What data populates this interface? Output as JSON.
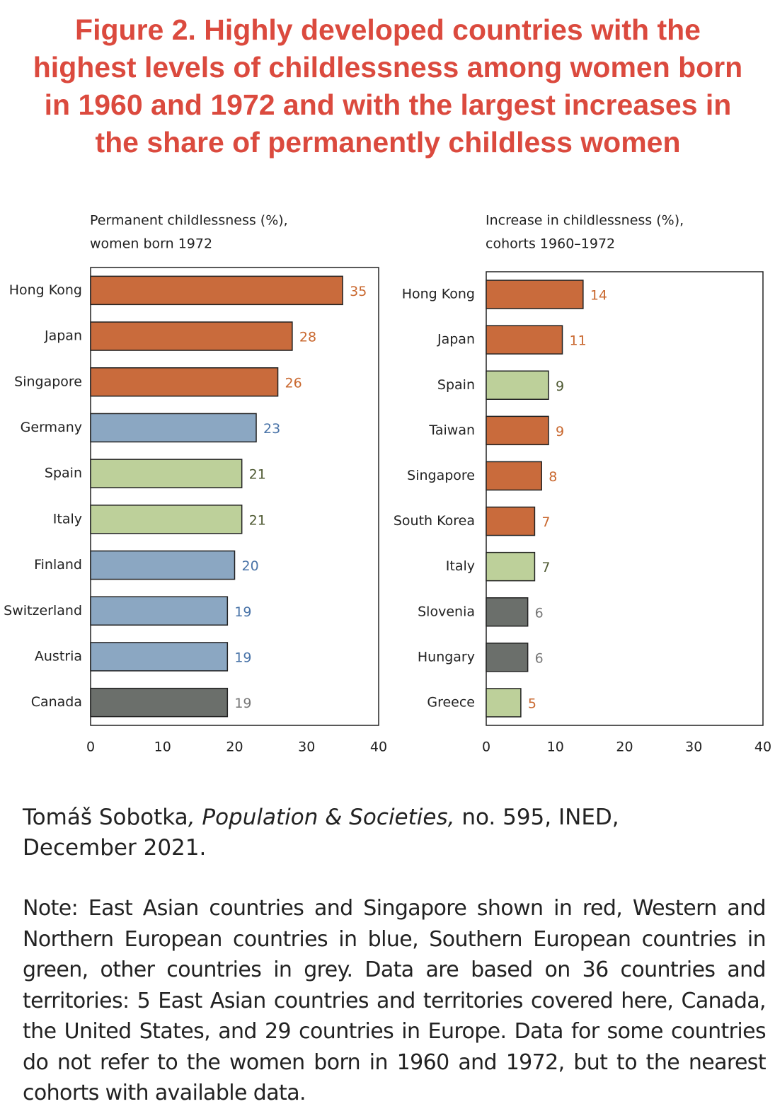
{
  "title": [
    "Figure 2. Highly developed countries with the",
    "highest levels of childlessness among women born",
    "in 1960 and 1972 and with the largest increases in",
    "the share of permanently childless women"
  ],
  "source": {
    "author": "Tomáš Sobotka",
    "journal": ", Population & Societies,",
    "rest": " no. 595, INED, December 2021."
  },
  "note": "Note: East Asian countries and Singapore shown in red, Western and Northern European countries in blue, Southern European countries in green, other countries in grey. Data are based on 36 countries and territories: 5 East Asian countries and territories covered here, Canada, the United States, and 29 countries in Europe. Data for some countries do not refer to the women born in 1960 and 1972, but to the nearest cohorts with available data.",
  "chart_data": [
    {
      "type": "barh",
      "axis_title": [
        "Permanent childlessness (%),",
        "women born 1972"
      ],
      "categories": [
        "Hong Kong",
        "Japan",
        "Singapore",
        "Germany",
        "Spain",
        "Italy",
        "Finland",
        "Switzerland",
        "Austria",
        "Canada"
      ],
      "values": [
        35,
        28,
        26,
        23,
        21,
        21,
        20,
        19,
        19,
        19
      ],
      "colors": [
        "#c96b3c",
        "#c96b3c",
        "#c96b3c",
        "#8ba7c2",
        "#bdd09a",
        "#bdd09a",
        "#8ba7c2",
        "#8ba7c2",
        "#8ba7c2",
        "#6b6f6b"
      ],
      "label_colors": [
        "#c9682f",
        "#c9682f",
        "#c9682f",
        "#4a74a8",
        "#4f5a33",
        "#4f5a33",
        "#4a74a8",
        "#4a74a8",
        "#4a74a8",
        "#777777"
      ],
      "xlim": [
        0,
        40
      ],
      "xticks": [
        0,
        10,
        20,
        30,
        40
      ]
    },
    {
      "type": "barh",
      "axis_title": [
        "Increase in childlessness (%),",
        "cohorts 1960–1972"
      ],
      "categories": [
        "Hong Kong",
        "Japan",
        "Spain",
        "Taiwan",
        "Singapore",
        "South Korea",
        "Italy",
        "Slovenia",
        "Hungary",
        "Greece"
      ],
      "values": [
        14,
        11,
        9,
        9,
        8,
        7,
        7,
        6,
        6,
        5
      ],
      "colors": [
        "#c96b3c",
        "#c96b3c",
        "#bdd09a",
        "#c96b3c",
        "#c96b3c",
        "#c96b3c",
        "#bdd09a",
        "#6b6f6b",
        "#6b6f6b",
        "#bdd09a"
      ],
      "label_colors": [
        "#c9682f",
        "#c9682f",
        "#4f5a33",
        "#c9682f",
        "#c9682f",
        "#c9682f",
        "#4f5a33",
        "#777777",
        "#777777",
        "#c9682f"
      ],
      "xlim": [
        0,
        40
      ],
      "xticks": [
        0,
        10,
        20,
        30,
        40
      ]
    }
  ]
}
